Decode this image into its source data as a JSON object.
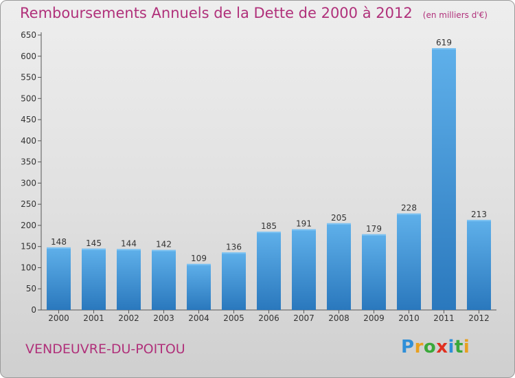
{
  "header": {
    "title": "Remboursements Annuels de la Dette de 2000 à 2012",
    "unit": "(en milliers d'€)"
  },
  "footer": {
    "commune": "VENDEUVRE-DU-POITOU",
    "logo_text": "Proxiti"
  },
  "colors": {
    "accent": "#b0307a",
    "bar": "#3d95d8",
    "bar_light": "#5fb0ea",
    "bar_dark": "#2a78bd"
  },
  "chart_data": {
    "type": "bar",
    "categories": [
      "2000",
      "2001",
      "2002",
      "2003",
      "2004",
      "2005",
      "2006",
      "2007",
      "2008",
      "2009",
      "2010",
      "2011",
      "2012"
    ],
    "values": [
      148,
      145,
      144,
      142,
      109,
      136,
      185,
      191,
      205,
      179,
      228,
      619,
      213
    ],
    "ylim": [
      0,
      650
    ],
    "yticks": [
      0,
      50,
      100,
      150,
      200,
      250,
      300,
      350,
      400,
      450,
      500,
      550,
      600,
      650
    ],
    "grid": false,
    "legend": "none"
  }
}
